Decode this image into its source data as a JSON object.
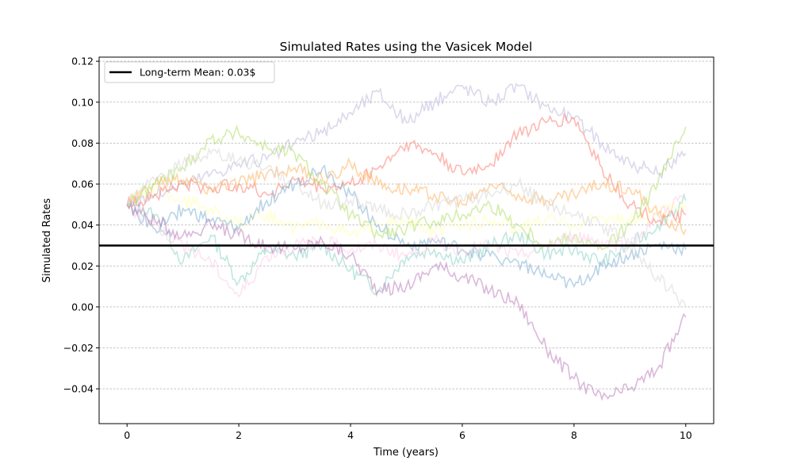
{
  "chart_data": {
    "type": "line",
    "title": "Simulated Rates using the Vasicek Model",
    "xlabel": "Time (years)",
    "ylabel": "Simulated Rates",
    "xlim": [
      -0.5,
      10.5
    ],
    "ylim": [
      -0.057,
      0.122
    ],
    "xticks": [
      0,
      2,
      4,
      6,
      8,
      10
    ],
    "xtick_labels": [
      "0",
      "2",
      "4",
      "6",
      "8",
      "10"
    ],
    "yticks": [
      -0.04,
      -0.02,
      0.0,
      0.02,
      0.04,
      0.06,
      0.08,
      0.1,
      0.12
    ],
    "ytick_labels": [
      "−0.04",
      "−0.02",
      "0.00",
      "0.02",
      "0.04",
      "0.06",
      "0.08",
      "0.10",
      "0.12"
    ],
    "grid": "horizontal dashed",
    "legend": {
      "placement": "top-left",
      "entries": [
        "Long-term Mean: 0.03$"
      ]
    },
    "hline": {
      "y": 0.03,
      "color": "#000000",
      "label": "Long-term Mean: 0.03$"
    },
    "series": [
      {
        "color": "#8dd3c7",
        "x": [
          0,
          0.5,
          1,
          1.5,
          2,
          2.5,
          3,
          3.5,
          4,
          4.5,
          5,
          5.5,
          6,
          6.5,
          7,
          7.5,
          8,
          8.5,
          9,
          9.5,
          10
        ],
        "values": [
          0.05,
          0.045,
          0.022,
          0.035,
          0.012,
          0.028,
          0.025,
          0.03,
          0.018,
          0.008,
          0.025,
          0.028,
          0.022,
          0.03,
          0.035,
          0.026,
          0.028,
          0.022,
          0.03,
          0.04,
          0.052
        ]
      },
      {
        "color": "#ffffb3",
        "x": [
          0,
          0.5,
          1,
          1.5,
          2,
          2.5,
          3,
          3.5,
          4,
          4.5,
          5,
          5.5,
          6,
          6.5,
          7,
          7.5,
          8,
          8.5,
          9,
          9.5,
          10
        ],
        "values": [
          0.05,
          0.058,
          0.052,
          0.048,
          0.04,
          0.045,
          0.038,
          0.042,
          0.035,
          0.04,
          0.042,
          0.036,
          0.04,
          0.042,
          0.038,
          0.043,
          0.04,
          0.044,
          0.042,
          0.046,
          0.05
        ]
      },
      {
        "color": "#bebada",
        "x": [
          0,
          0.5,
          1,
          1.5,
          2,
          2.5,
          3,
          3.5,
          4,
          4.5,
          5,
          5.5,
          6,
          6.5,
          7,
          7.5,
          8,
          8.5,
          9,
          9.5,
          10
        ],
        "values": [
          0.05,
          0.055,
          0.06,
          0.065,
          0.07,
          0.072,
          0.08,
          0.085,
          0.095,
          0.105,
          0.09,
          0.1,
          0.108,
          0.1,
          0.108,
          0.098,
          0.092,
          0.08,
          0.07,
          0.065,
          0.075
        ]
      },
      {
        "color": "#fb8072",
        "x": [
          0,
          0.5,
          1,
          1.5,
          2,
          2.5,
          3,
          3.5,
          4,
          4.5,
          5,
          5.5,
          6,
          6.5,
          7,
          7.5,
          8,
          8.5,
          9,
          9.5,
          10
        ],
        "values": [
          0.05,
          0.055,
          0.06,
          0.058,
          0.06,
          0.055,
          0.062,
          0.058,
          0.06,
          0.068,
          0.08,
          0.075,
          0.065,
          0.07,
          0.085,
          0.09,
          0.092,
          0.068,
          0.05,
          0.042,
          0.045
        ]
      },
      {
        "color": "#80b1d3",
        "x": [
          0,
          0.5,
          1,
          1.5,
          2,
          2.5,
          3,
          3.5,
          4,
          4.5,
          5,
          5.5,
          6,
          6.5,
          7,
          7.5,
          8,
          8.5,
          9,
          9.5,
          10
        ],
        "values": [
          0.05,
          0.038,
          0.048,
          0.042,
          0.038,
          0.052,
          0.06,
          0.068,
          0.055,
          0.04,
          0.03,
          0.032,
          0.028,
          0.025,
          0.022,
          0.015,
          0.01,
          0.02,
          0.025,
          0.03,
          0.028
        ]
      },
      {
        "color": "#fdb462",
        "x": [
          0,
          0.5,
          1,
          1.5,
          2,
          2.5,
          3,
          3.5,
          4,
          4.5,
          5,
          5.5,
          6,
          6.5,
          7,
          7.5,
          8,
          8.5,
          9,
          9.5,
          10
        ],
        "values": [
          0.05,
          0.06,
          0.062,
          0.058,
          0.06,
          0.065,
          0.068,
          0.062,
          0.07,
          0.06,
          0.058,
          0.055,
          0.05,
          0.06,
          0.055,
          0.052,
          0.055,
          0.06,
          0.058,
          0.045,
          0.038
        ]
      },
      {
        "color": "#b3de69",
        "x": [
          0,
          0.5,
          1,
          1.5,
          2,
          2.5,
          3,
          3.5,
          4,
          4.5,
          5,
          5.5,
          6,
          6.5,
          7,
          7.5,
          8,
          8.5,
          9,
          9.5,
          10
        ],
        "values": [
          0.05,
          0.06,
          0.068,
          0.082,
          0.085,
          0.078,
          0.075,
          0.06,
          0.045,
          0.035,
          0.038,
          0.042,
          0.045,
          0.05,
          0.04,
          0.03,
          0.035,
          0.028,
          0.04,
          0.06,
          0.088
        ]
      },
      {
        "color": "#fccde5",
        "x": [
          0,
          0.5,
          1,
          1.5,
          2,
          2.5,
          3,
          3.5,
          4,
          4.5,
          5,
          5.5,
          6,
          6.5,
          7,
          7.5,
          8,
          8.5,
          9,
          9.5,
          10
        ],
        "values": [
          0.05,
          0.04,
          0.03,
          0.022,
          0.005,
          0.025,
          0.03,
          0.032,
          0.028,
          0.03,
          0.025,
          0.032,
          0.028,
          0.03,
          0.025,
          0.03,
          0.035,
          0.032,
          0.03,
          0.045,
          0.055
        ]
      },
      {
        "color": "#d9d9d9",
        "x": [
          0,
          0.5,
          1,
          1.5,
          2,
          2.5,
          3,
          3.5,
          4,
          4.5,
          5,
          5.5,
          6,
          6.5,
          7,
          7.5,
          8,
          8.5,
          9,
          9.5,
          10
        ],
        "values": [
          0.05,
          0.062,
          0.07,
          0.075,
          0.072,
          0.068,
          0.06,
          0.05,
          0.052,
          0.048,
          0.045,
          0.05,
          0.052,
          0.055,
          0.06,
          0.05,
          0.045,
          0.04,
          0.03,
          0.015,
          0.0
        ]
      },
      {
        "color": "#bc80bd",
        "x": [
          0,
          0.5,
          1,
          1.5,
          2,
          2.5,
          3,
          3.5,
          4,
          4.5,
          5,
          5.5,
          6,
          6.5,
          7,
          7.5,
          8,
          8.5,
          9,
          9.5,
          10
        ],
        "values": [
          0.05,
          0.042,
          0.035,
          0.04,
          0.035,
          0.03,
          0.028,
          0.032,
          0.025,
          0.008,
          0.01,
          0.02,
          0.015,
          0.008,
          0.002,
          -0.02,
          -0.035,
          -0.045,
          -0.04,
          -0.03,
          -0.005
        ]
      }
    ]
  }
}
